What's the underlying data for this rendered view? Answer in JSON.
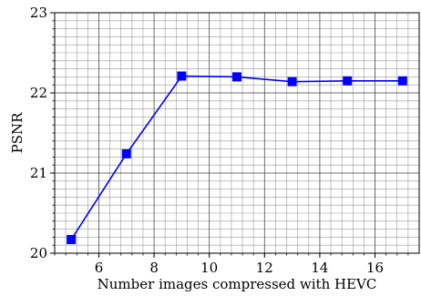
{
  "chart_data": {
    "type": "line",
    "title": "",
    "xlabel": "Number images compressed with HEVC",
    "ylabel": "PSNR",
    "xlim": [
      4.4,
      17.6
    ],
    "ylim": [
      20,
      23
    ],
    "xticks": [
      6,
      8,
      10,
      12,
      14,
      16
    ],
    "yticks": [
      20,
      21,
      22,
      23
    ],
    "xtick_labels": [
      "6",
      "8",
      "10",
      "12",
      "14",
      "16"
    ],
    "ytick_labels": [
      "20",
      "21",
      "22",
      "23"
    ],
    "grid": true,
    "minor_grid": true,
    "series": [
      {
        "color": "#0000ff",
        "marker": "square",
        "x": [
          5,
          7,
          9,
          11,
          13,
          15,
          17
        ],
        "y": [
          20.17,
          21.24,
          22.21,
          22.2,
          22.14,
          22.15,
          22.15
        ]
      }
    ]
  }
}
